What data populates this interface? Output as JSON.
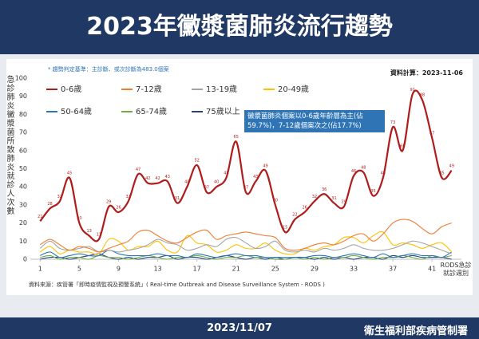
{
  "chart_data": {
    "type": "line",
    "title": "2023年黴漿菌肺炎流行趨勢",
    "note": "* 趨勢判定基準：主診斷、或次診斷為483.0個案",
    "data_date": "資料計算：2023-11-06",
    "y_label": "急診肺炎黴漿菌所致肺炎就診人次數",
    "x_label": "RODS急診就診週別",
    "annotation": "黴漿菌肺炎個案以0-6歲年齡層為主(佔59.7%)，7-12歲個案次之(佔17.7%)",
    "source": "資料來源：疾管署「即時疫情監視及預警系統」( Real-time Outbreak and Disease Surveillance System - RODS )",
    "footer_date": "2023/11/07",
    "footer_org": "衛生福利部疾病管制署",
    "legend": "upper left",
    "grid": false,
    "xlim": [
      0,
      44
    ],
    "xticks": [
      1,
      5,
      9,
      13,
      17,
      21,
      25,
      29,
      33,
      37,
      41
    ],
    "ylim": [
      0,
      100
    ],
    "yticks": [
      0,
      10,
      20,
      30,
      40,
      50,
      60,
      70,
      80,
      90,
      100
    ],
    "x": [
      1,
      2,
      3,
      4,
      5,
      6,
      7,
      8,
      9,
      10,
      11,
      12,
      13,
      14,
      15,
      16,
      17,
      18,
      19,
      20,
      21,
      22,
      23,
      24,
      25,
      26,
      27,
      28,
      29,
      30,
      31,
      32,
      33,
      34,
      35,
      36,
      37,
      38,
      39,
      40,
      41,
      42,
      43
    ],
    "series": [
      {
        "name": "0-6歲",
        "color": "#b01c1c",
        "data_labels": true,
        "values": [
          21,
          28,
          32,
          45,
          20,
          13,
          11,
          29,
          26,
          32,
          47,
          42,
          42,
          43,
          31,
          40,
          52,
          37,
          40,
          45,
          65,
          37,
          43,
          49,
          30,
          15,
          22,
          26,
          32,
          36,
          31,
          29,
          46,
          48,
          35,
          45,
          73,
          60,
          91,
          88,
          67,
          45,
          49
        ]
      },
      {
        "name": "7-12歲",
        "color": "#ed7d31",
        "values": [
          8,
          11,
          8,
          5,
          7,
          6,
          4,
          6,
          8,
          10,
          15,
          16,
          13,
          10,
          9,
          12,
          15,
          16,
          11,
          13,
          14,
          15,
          14,
          13,
          12,
          6,
          5,
          6,
          8,
          9,
          8,
          10,
          13,
          14,
          10,
          14,
          20,
          22,
          21,
          17,
          14,
          18,
          20
        ]
      },
      {
        "name": "13-19歲",
        "color": "#a5a5a5",
        "values": [
          6,
          10,
          6,
          5,
          6,
          7,
          4,
          5,
          4,
          5,
          6,
          8,
          11,
          9,
          8,
          5,
          6,
          8,
          7,
          11,
          12,
          9,
          6,
          7,
          10,
          5,
          4,
          5,
          4,
          6,
          5,
          6,
          8,
          6,
          5,
          5,
          6,
          8,
          10,
          9,
          7,
          5,
          3
        ]
      },
      {
        "name": "20-49歲",
        "color": "#ffc000",
        "values": [
          4,
          7,
          3,
          5,
          4,
          4,
          3,
          11,
          10,
          5,
          7,
          7,
          10,
          5,
          4,
          13,
          9,
          8,
          4,
          5,
          8,
          6,
          6,
          9,
          5,
          3,
          3,
          6,
          5,
          7,
          8,
          12,
          12,
          9,
          13,
          15,
          8,
          9,
          8,
          6,
          8,
          9,
          4
        ]
      },
      {
        "name": "50-64歲",
        "color": "#2e75b6",
        "values": [
          2,
          4,
          1,
          2,
          3,
          2,
          2,
          5,
          3,
          2,
          2,
          2,
          3,
          2,
          2,
          1,
          3,
          2,
          1,
          2,
          3,
          2,
          2,
          1,
          1,
          1,
          1,
          1,
          2,
          2,
          1,
          2,
          3,
          2,
          1,
          3,
          1,
          2,
          3,
          2,
          2,
          1,
          4
        ]
      },
      {
        "name": "65-74歲",
        "color": "#70ad47",
        "values": [
          1,
          2,
          0,
          1,
          1,
          0,
          2,
          1,
          1,
          0,
          1,
          2,
          1,
          0,
          1,
          1,
          2,
          1,
          0,
          1,
          1,
          2,
          1,
          1,
          0,
          0,
          1,
          0,
          1,
          0,
          1,
          1,
          2,
          1,
          0,
          1,
          1,
          2,
          1,
          0,
          2,
          1,
          2
        ]
      },
      {
        "name": "75歲以上",
        "color": "#264478",
        "values": [
          0,
          1,
          1,
          0,
          1,
          2,
          3,
          1,
          0,
          1,
          0,
          1,
          1,
          2,
          0,
          1,
          1,
          0,
          1,
          2,
          1,
          0,
          1,
          0,
          1,
          0,
          1,
          1,
          0,
          1,
          0,
          1,
          0,
          1,
          1,
          0,
          2,
          1,
          2,
          1,
          1,
          1,
          0
        ]
      }
    ]
  }
}
